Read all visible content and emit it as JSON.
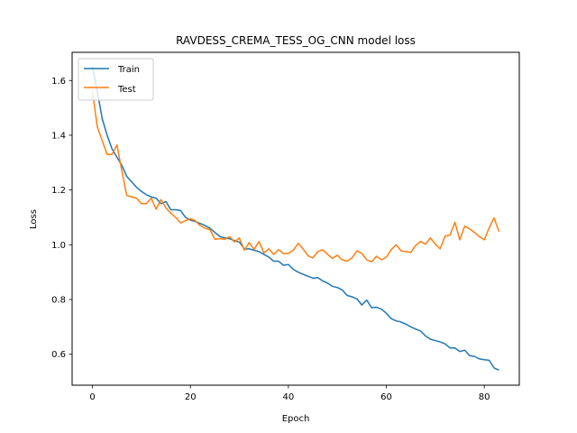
{
  "chart_data": {
    "type": "line",
    "title": "RAVDESS_CREMA_TESS_OG_CNN model loss",
    "xlabel": "Epoch",
    "ylabel": "Loss",
    "xlim": [
      -4.15,
      87.15
    ],
    "ylim": [
      0.487,
      1.703
    ],
    "xticks": [
      0,
      20,
      40,
      60,
      80
    ],
    "yticks": [
      0.6,
      0.8,
      1.0,
      1.2,
      1.4,
      1.6
    ],
    "ytick_labels": [
      "0.6",
      "0.8",
      "1.0",
      "1.2",
      "1.4",
      "1.6"
    ],
    "grid": false,
    "legend_position": "upper-left",
    "series": [
      {
        "name": "Train",
        "color": "#1f77b4",
        "x": [
          0,
          1,
          2,
          3,
          4,
          5,
          6,
          7,
          8,
          9,
          10,
          11,
          12,
          13,
          14,
          15,
          16,
          17,
          18,
          19,
          20,
          21,
          22,
          23,
          24,
          25,
          26,
          27,
          28,
          29,
          30,
          31,
          32,
          33,
          34,
          35,
          36,
          37,
          38,
          39,
          40,
          41,
          42,
          43,
          44,
          45,
          46,
          47,
          48,
          49,
          50,
          51,
          52,
          53,
          54,
          55,
          56,
          57,
          58,
          59,
          60,
          61,
          62,
          63,
          64,
          65,
          66,
          67,
          68,
          69,
          70,
          71,
          72,
          73,
          74,
          75,
          76,
          77,
          78,
          79,
          80,
          81,
          82,
          83
        ],
        "values": [
          1.65,
          1.56,
          1.46,
          1.4,
          1.35,
          1.32,
          1.29,
          1.25,
          1.23,
          1.21,
          1.195,
          1.183,
          1.175,
          1.17,
          1.15,
          1.158,
          1.128,
          1.128,
          1.125,
          1.1,
          1.09,
          1.085,
          1.078,
          1.07,
          1.06,
          1.045,
          1.03,
          1.025,
          1.022,
          1.015,
          1.01,
          0.985,
          0.985,
          0.98,
          0.975,
          0.965,
          0.955,
          0.94,
          0.94,
          0.925,
          0.928,
          0.91,
          0.9,
          0.892,
          0.885,
          0.878,
          0.88,
          0.868,
          0.86,
          0.848,
          0.844,
          0.835,
          0.815,
          0.81,
          0.802,
          0.78,
          0.798,
          0.77,
          0.772,
          0.765,
          0.75,
          0.73,
          0.722,
          0.718,
          0.71,
          0.7,
          0.692,
          0.685,
          0.667,
          0.655,
          0.65,
          0.645,
          0.638,
          0.623,
          0.623,
          0.61,
          0.615,
          0.595,
          0.592,
          0.583,
          0.58,
          0.578,
          0.55,
          0.542
        ]
      },
      {
        "name": "Test",
        "color": "#ff7f0e",
        "x": [
          0,
          1,
          2,
          3,
          4,
          5,
          6,
          7,
          8,
          9,
          10,
          11,
          12,
          13,
          14,
          15,
          16,
          17,
          18,
          19,
          20,
          21,
          22,
          23,
          24,
          25,
          26,
          27,
          28,
          29,
          30,
          31,
          32,
          33,
          34,
          35,
          36,
          37,
          38,
          39,
          40,
          41,
          42,
          43,
          44,
          45,
          46,
          47,
          48,
          49,
          50,
          51,
          52,
          53,
          54,
          55,
          56,
          57,
          58,
          59,
          60,
          61,
          62,
          63,
          64,
          65,
          66,
          67,
          68,
          69,
          70,
          71,
          72,
          73,
          74,
          75,
          76,
          77,
          78,
          79,
          80,
          81,
          82,
          83
        ],
        "values": [
          1.56,
          1.43,
          1.38,
          1.33,
          1.33,
          1.365,
          1.27,
          1.18,
          1.175,
          1.17,
          1.15,
          1.15,
          1.17,
          1.13,
          1.165,
          1.135,
          1.115,
          1.1,
          1.08,
          1.088,
          1.095,
          1.088,
          1.07,
          1.06,
          1.055,
          1.02,
          1.022,
          1.02,
          1.03,
          1.01,
          1.025,
          0.98,
          1.008,
          0.983,
          1.012,
          0.97,
          0.985,
          0.965,
          0.982,
          0.968,
          0.968,
          0.98,
          1.005,
          0.985,
          0.96,
          0.952,
          0.975,
          0.982,
          0.965,
          0.95,
          0.962,
          0.945,
          0.94,
          0.952,
          0.978,
          0.968,
          0.945,
          0.938,
          0.958,
          0.945,
          0.955,
          0.982,
          1.0,
          0.978,
          0.975,
          0.972,
          0.998,
          1.012,
          1.002,
          1.025,
          1.002,
          0.985,
          1.032,
          1.035,
          1.082,
          1.018,
          1.068,
          1.058,
          1.045,
          1.03,
          1.018,
          1.062,
          1.098,
          1.048
        ]
      }
    ]
  }
}
